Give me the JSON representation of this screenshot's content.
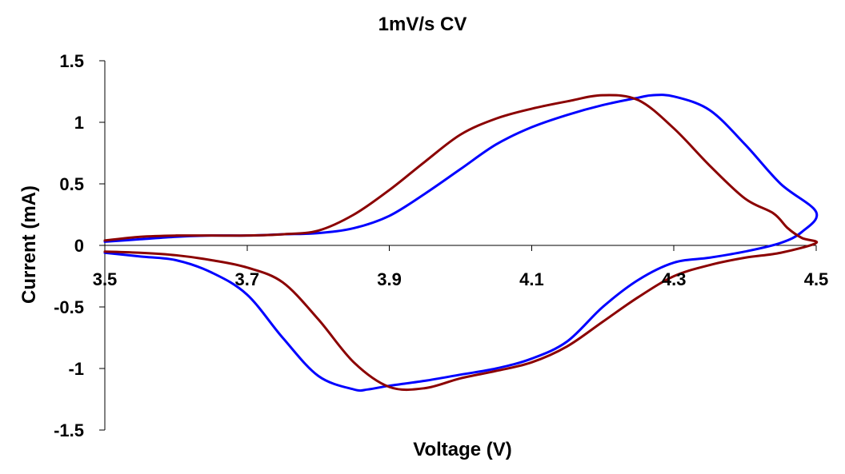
{
  "chart_data": {
    "type": "line",
    "title": "1mV/s CV",
    "xlabel": "Voltage (V)",
    "ylabel": "Current (mA)",
    "xlim": [
      3.5,
      4.5
    ],
    "ylim": [
      -1.5,
      1.5
    ],
    "x_ticks": [
      3.5,
      3.7,
      3.9,
      4.1,
      4.3,
      4.5
    ],
    "x_tick_labels": [
      "3.5",
      "3.7",
      "3.9",
      "4.1",
      "4.3",
      "4.5"
    ],
    "y_ticks": [
      1.5,
      1,
      0.5,
      0,
      -0.5,
      -1,
      -1.5
    ],
    "y_tick_labels": [
      "1.5",
      "1",
      "0.5",
      "0",
      "-0.5",
      "-1",
      "-1.5"
    ],
    "grid": false,
    "legend": "none",
    "series": [
      {
        "color": "#0000ff",
        "x": [
          3.5,
          3.55,
          3.6,
          3.65,
          3.7,
          3.75,
          3.8,
          3.85,
          3.9,
          3.95,
          4.0,
          4.05,
          4.1,
          4.15,
          4.2,
          4.25,
          4.27,
          4.3,
          4.35,
          4.4,
          4.45,
          4.5,
          4.48,
          4.45,
          4.4,
          4.35,
          4.3,
          4.25,
          4.2,
          4.15,
          4.1,
          4.05,
          4.0,
          3.95,
          3.9,
          3.87,
          3.85,
          3.8,
          3.75,
          3.7,
          3.65,
          3.6,
          3.55,
          3.5
        ],
        "y": [
          0.03,
          0.05,
          0.07,
          0.08,
          0.08,
          0.09,
          0.1,
          0.14,
          0.24,
          0.42,
          0.62,
          0.82,
          0.96,
          1.06,
          1.14,
          1.2,
          1.22,
          1.21,
          1.1,
          0.82,
          0.5,
          0.27,
          0.11,
          0.02,
          -0.05,
          -0.1,
          -0.14,
          -0.28,
          -0.5,
          -0.78,
          -0.92,
          -1.0,
          -1.05,
          -1.1,
          -1.14,
          -1.17,
          -1.17,
          -1.06,
          -0.75,
          -0.4,
          -0.22,
          -0.12,
          -0.09,
          -0.06
        ]
      },
      {
        "color": "#8b0000",
        "x": [
          3.5,
          3.55,
          3.6,
          3.65,
          3.7,
          3.75,
          3.8,
          3.85,
          3.9,
          3.95,
          4.0,
          4.05,
          4.1,
          4.15,
          4.2,
          4.25,
          4.3,
          4.35,
          4.4,
          4.44,
          4.46,
          4.48,
          4.5,
          4.45,
          4.4,
          4.35,
          4.3,
          4.25,
          4.2,
          4.15,
          4.1,
          4.05,
          4.0,
          3.95,
          3.9,
          3.85,
          3.8,
          3.75,
          3.7,
          3.65,
          3.6,
          3.55,
          3.5
        ],
        "y": [
          0.04,
          0.07,
          0.08,
          0.08,
          0.08,
          0.09,
          0.12,
          0.25,
          0.45,
          0.68,
          0.9,
          1.03,
          1.11,
          1.17,
          1.22,
          1.18,
          0.95,
          0.65,
          0.38,
          0.26,
          0.14,
          0.06,
          0.02,
          -0.06,
          -0.1,
          -0.16,
          -0.25,
          -0.42,
          -0.62,
          -0.82,
          -0.95,
          -1.02,
          -1.08,
          -1.16,
          -1.15,
          -0.95,
          -0.6,
          -0.3,
          -0.18,
          -0.12,
          -0.08,
          -0.06,
          -0.05
        ]
      }
    ]
  }
}
